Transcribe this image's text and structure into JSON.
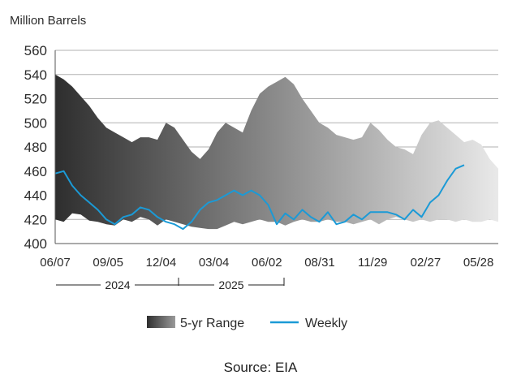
{
  "chart_data": {
    "type": "area",
    "title": "",
    "ylabel": "Million Barrels",
    "ylim": [
      400,
      560
    ],
    "yticks": [
      400,
      420,
      440,
      460,
      480,
      500,
      520,
      540,
      560
    ],
    "xticks": [
      "06/07",
      "09/05",
      "12/04",
      "03/04",
      "06/02",
      "08/31",
      "11/29",
      "02/27",
      "05/28"
    ],
    "year_labels": [
      "2024",
      "2025"
    ],
    "grid": true,
    "legend_position": "bottom",
    "legend": {
      "range_label": "5-yr Range",
      "weekly_label": "Weekly"
    },
    "colors": {
      "range_dark": "#2e2e2e",
      "range_light": "#e9e9e9",
      "weekly": "#1b9ad6",
      "grid": "#b0b0b0"
    },
    "range": {
      "name": "5-yr Range",
      "x": [
        "06/07",
        "06/21",
        "07/05",
        "07/19",
        "08/02",
        "08/16",
        "08/30",
        "09/13",
        "09/27",
        "10/11",
        "10/25",
        "11/08",
        "11/22",
        "12/06",
        "12/20",
        "01/03",
        "01/17",
        "01/31",
        "02/14",
        "02/28",
        "03/14",
        "03/28",
        "04/11",
        "04/25",
        "05/09",
        "05/23",
        "06/06",
        "06/20",
        "07/04",
        "07/18",
        "08/01",
        "08/15",
        "08/29",
        "09/12",
        "09/26",
        "10/10",
        "10/24",
        "11/07",
        "11/21",
        "12/05",
        "12/19",
        "01/02",
        "01/16",
        "01/30",
        "02/13",
        "02/27",
        "03/13",
        "03/27",
        "04/10",
        "04/24",
        "05/08",
        "05/22",
        "06/05"
      ],
      "min": [
        420,
        418,
        425,
        424,
        419,
        418,
        416,
        415,
        420,
        418,
        422,
        420,
        415,
        420,
        418,
        416,
        414,
        413,
        412,
        412,
        415,
        418,
        416,
        418,
        420,
        418,
        418,
        415,
        418,
        420,
        418,
        418,
        420,
        418,
        418,
        416,
        418,
        420,
        416,
        420,
        422,
        420,
        418,
        420,
        418,
        420,
        420,
        418,
        420,
        418,
        418,
        420,
        418
      ],
      "max": [
        540,
        536,
        530,
        522,
        514,
        504,
        496,
        492,
        488,
        484,
        488,
        488,
        486,
        500,
        496,
        486,
        476,
        470,
        478,
        492,
        500,
        496,
        492,
        510,
        524,
        530,
        534,
        538,
        532,
        520,
        510,
        500,
        496,
        490,
        488,
        486,
        488,
        500,
        494,
        486,
        480,
        478,
        474,
        490,
        500,
        502,
        496,
        490,
        484,
        486,
        482,
        470,
        462
      ]
    },
    "series": [
      {
        "name": "Weekly",
        "x": [
          "06/07",
          "06/21",
          "07/05",
          "07/19",
          "08/02",
          "08/16",
          "08/30",
          "09/13",
          "09/27",
          "10/11",
          "10/25",
          "11/08",
          "11/22",
          "12/06",
          "12/20",
          "01/03",
          "01/17",
          "01/31",
          "02/14",
          "02/28",
          "03/14",
          "03/28",
          "04/11",
          "04/25",
          "05/09",
          "05/23",
          "06/06",
          "06/20",
          "07/04",
          "07/18",
          "08/01",
          "08/15",
          "08/29",
          "09/12",
          "09/26",
          "10/10",
          "10/24",
          "11/07",
          "11/21",
          "12/05",
          "12/19",
          "01/02",
          "01/16",
          "01/30",
          "02/13",
          "02/27",
          "03/13",
          "03/27",
          "04/10"
        ],
        "values": [
          458,
          460,
          448,
          440,
          434,
          428,
          420,
          416,
          422,
          424,
          430,
          428,
          422,
          418,
          416,
          412,
          418,
          428,
          434,
          436,
          440,
          444,
          440,
          444,
          440,
          432,
          416,
          425,
          420,
          428,
          422,
          418,
          426,
          416,
          418,
          424,
          420,
          426,
          426,
          426,
          424,
          420,
          428,
          422,
          434,
          440,
          452,
          462,
          465
        ]
      }
    ]
  },
  "source": "Source: EIA"
}
